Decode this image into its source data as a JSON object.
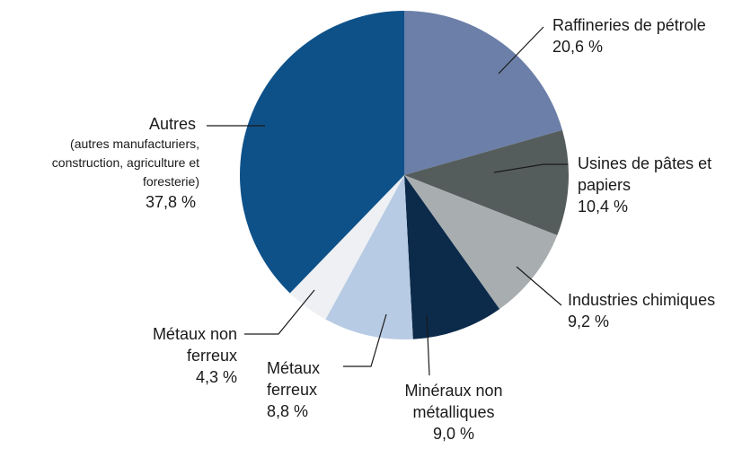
{
  "chart_data": {
    "type": "pie",
    "categories": [
      "Raffineries de pétrole",
      "Usines de pâtes et papiers",
      "Industries chimiques",
      "Minéraux non métalliques",
      "Métaux ferreux",
      "Métaux non ferreux",
      "Autres"
    ],
    "values": [
      20.6,
      10.4,
      9.2,
      9.0,
      8.8,
      4.3,
      37.8
    ],
    "value_labels": [
      "20,6 %",
      "10,4 %",
      "9,2 %",
      "9,0 %",
      "8,8 %",
      "4,3 %",
      "37,8 %"
    ],
    "colors": [
      "#6b7fa8",
      "#555d5c",
      "#a8aeb0",
      "#0c2a4a",
      "#b8cbe4",
      "#eef0f3",
      "#0e5189"
    ],
    "annotation": "(autres manufacturiers, construction, agriculture et foresterie)"
  }
}
